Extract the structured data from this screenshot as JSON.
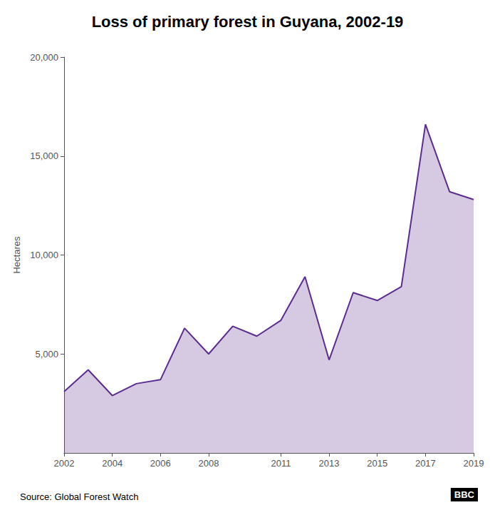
{
  "chart_data": {
    "type": "area",
    "title": "Loss of primary forest in Guyana, 2002-19",
    "x": [
      2002,
      2003,
      2004,
      2005,
      2006,
      2007,
      2008,
      2009,
      2010,
      2011,
      2012,
      2013,
      2014,
      2015,
      2016,
      2017,
      2018,
      2019
    ],
    "values": [
      3100,
      4200,
      2900,
      3500,
      3700,
      6300,
      5000,
      6400,
      5900,
      6700,
      8900,
      4700,
      8100,
      7700,
      8400,
      16600,
      13200,
      12800
    ],
    "color": "#5b2d8e",
    "ylabel": "Hectares",
    "xlim": [
      2002,
      2019
    ],
    "xticks": [
      2002,
      2004,
      2006,
      2008,
      2011,
      2013,
      2015,
      2017,
      2019
    ],
    "ylim": [
      0,
      20000
    ],
    "yticks": [
      {
        "value": 5000,
        "label": "5,000"
      },
      {
        "value": 10000,
        "label": "10,000"
      },
      {
        "value": 15000,
        "label": "15,000"
      },
      {
        "value": 20000,
        "label": "20,000"
      }
    ],
    "grid": false,
    "annotations": [
      "Source: Global Forest Watch",
      "BBC"
    ]
  }
}
